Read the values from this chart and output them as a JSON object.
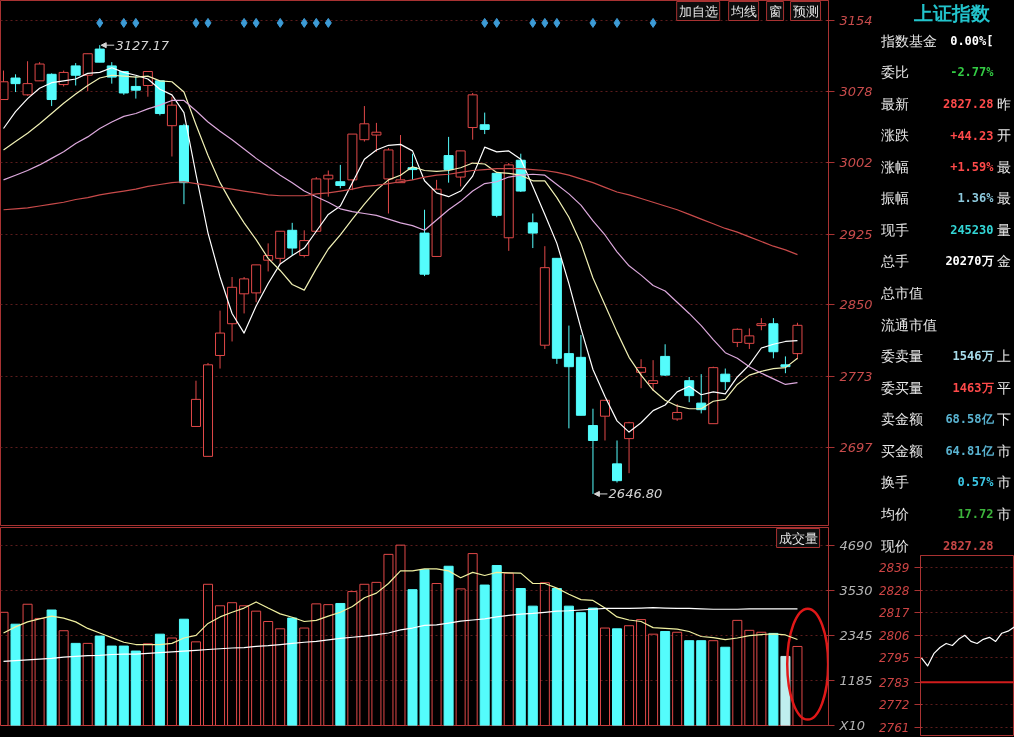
{
  "chart_data": [
    {
      "type": "candlestick",
      "categories": [
        null,
        null,
        null,
        null,
        null,
        null,
        null,
        null,
        null,
        null,
        null,
        null,
        null,
        null,
        null,
        null,
        null,
        null,
        null,
        null,
        null,
        null,
        null,
        null,
        null,
        null,
        null,
        null,
        null,
        null,
        null,
        null,
        null,
        null,
        null,
        null,
        null,
        null,
        null,
        null,
        null,
        null,
        null,
        null,
        null,
        null,
        null,
        null,
        null,
        null,
        null,
        null,
        null,
        null,
        null,
        null,
        null,
        null,
        null,
        null,
        null,
        null,
        null,
        null,
        null,
        null,
        null
      ],
      "ohlc": [
        [
          3069,
          3100,
          3069,
          3088
        ],
        [
          3092,
          3096,
          3077,
          3086
        ],
        [
          3074,
          3110,
          3073,
          3086
        ],
        [
          3089,
          3109,
          3089,
          3107
        ],
        [
          3096,
          3097,
          3062,
          3069
        ],
        [
          3085,
          3100,
          3083,
          3098
        ],
        [
          3105,
          3108,
          3084,
          3095
        ],
        [
          3095,
          3118,
          3078,
          3118
        ],
        [
          3123,
          3127.17,
          3109,
          3109
        ],
        [
          3105,
          3109,
          3086,
          3093
        ],
        [
          3099,
          3099,
          3074,
          3076
        ],
        [
          3083,
          3094,
          3070,
          3079
        ],
        [
          3084,
          3099,
          3072,
          3099
        ],
        [
          3089,
          3089,
          3052,
          3054
        ],
        [
          3041,
          3072,
          3008,
          3063
        ],
        [
          3041,
          3043,
          2957,
          2980
        ],
        [
          2719,
          2768,
          2719,
          2748
        ],
        [
          2687,
          2787,
          2687,
          2785
        ],
        [
          2795,
          2843,
          2781,
          2819
        ],
        [
          2829,
          2879,
          2810,
          2868
        ],
        [
          2861,
          2879,
          2840,
          2877
        ],
        [
          2862,
          2892,
          2852,
          2892
        ],
        [
          2897,
          2915,
          2885,
          2902
        ],
        [
          2899,
          2928,
          2893,
          2928
        ],
        [
          2929,
          2937,
          2902,
          2910
        ],
        [
          2902,
          2929,
          2900,
          2918
        ],
        [
          2928,
          2986,
          2928,
          2984
        ],
        [
          2984,
          2993,
          2965,
          2988
        ],
        [
          2981,
          2999,
          2974,
          2977
        ],
        [
          2983,
          3032,
          2972,
          3032
        ],
        [
          3026,
          3062,
          3024,
          3043
        ],
        [
          3031,
          3044,
          3013,
          3034
        ],
        [
          2984,
          3017,
          2947,
          3015
        ],
        [
          2980,
          3031,
          2980,
          2983
        ],
        [
          2996,
          3011,
          2983,
          2994
        ],
        [
          2926,
          2951,
          2880,
          2882
        ],
        [
          2901,
          2983,
          2901,
          2973
        ],
        [
          3009,
          3029,
          2980,
          2994
        ],
        [
          2986,
          3014,
          2976,
          3014
        ],
        [
          3039,
          3076,
          3026,
          3074
        ],
        [
          3042,
          3055,
          3032,
          3037
        ],
        [
          2990,
          2990,
          2943,
          2945
        ],
        [
          2921,
          3001,
          2907,
          2999
        ],
        [
          3004,
          3011,
          2970,
          2971
        ],
        [
          2937,
          2947,
          2910,
          2926
        ],
        [
          2806,
          2912,
          2802,
          2889
        ],
        [
          2899,
          2899,
          2786,
          2792
        ],
        [
          2797,
          2827,
          2717,
          2783
        ],
        [
          2793,
          2817,
          2731,
          2731
        ],
        [
          2720,
          2738,
          2646.8,
          2704
        ],
        [
          2730,
          2747,
          2704,
          2747
        ],
        [
          2679,
          2704,
          2659,
          2661
        ],
        [
          2706,
          2724,
          2669,
          2723
        ],
        [
          2777,
          2791,
          2760,
          2782
        ],
        [
          2765,
          2790,
          2757,
          2768
        ],
        [
          2794,
          2807,
          2773,
          2774
        ],
        [
          2727,
          2743,
          2725,
          2734
        ],
        [
          2768,
          2772,
          2745,
          2752
        ],
        [
          2744,
          2775,
          2733,
          2737
        ],
        [
          2722,
          2783,
          2722,
          2782
        ],
        [
          2775,
          2781,
          2758,
          2767
        ],
        [
          2809,
          2824,
          2804,
          2823
        ],
        [
          2808,
          2824,
          2802,
          2816
        ],
        [
          2827,
          2835,
          2822,
          2829
        ],
        [
          2829,
          2835,
          2792,
          2799
        ],
        [
          2785,
          2794,
          2776,
          2783.05
        ],
        [
          2797,
          2830,
          2791,
          2827.28
        ]
      ],
      "colors": [
        "#e04848",
        "#54fcfc",
        "#e04848",
        "#e04848",
        "#54fcfc",
        "#e04848",
        "#54fcfc",
        "#e04848",
        "#54fcfc",
        "#54fcfc",
        "#54fcfc",
        "#54fcfc",
        "#e04848",
        "#54fcfc",
        "#e04848",
        "#54fcfc",
        "#e04848",
        "#e04848",
        "#e04848",
        "#e04848",
        "#e04848",
        "#e04848",
        "#e04848",
        "#e04848",
        "#54fcfc",
        "#e04848",
        "#e04848",
        "#e04848",
        "#54fcfc",
        "#e04848",
        "#e04848",
        "#e04848",
        "#e04848",
        "#e04848",
        "#54fcfc",
        "#54fcfc",
        "#e04848",
        "#54fcfc",
        "#e04848",
        "#e04848",
        "#54fcfc",
        "#54fcfc",
        "#e04848",
        "#54fcfc",
        "#54fcfc",
        "#e04848",
        "#54fcfc",
        "#54fcfc",
        "#54fcfc",
        "#54fcfc",
        "#e04848",
        "#54fcfc",
        "#e04848",
        "#e04848",
        "#e04848",
        "#54fcfc",
        "#e04848",
        "#54fcfc",
        "#54fcfc",
        "#e04848",
        "#54fcfc",
        "#e04848",
        "#e04848",
        "#e04848",
        "#54fcfc",
        "#54fcfc",
        "#e04848"
      ],
      "series": [
        {
          "type": "line",
          "color": "#ffffff",
          "values": [
            3038,
            3056,
            3070,
            3081,
            3087,
            3089,
            3091,
            3097,
            3098,
            3103,
            3098,
            3095,
            3091,
            3080,
            3074,
            3055,
            2989,
            2926,
            2879,
            2840,
            2819,
            2848,
            2872,
            2893,
            2902,
            2910,
            2928,
            2946,
            2955,
            2980,
            3005,
            3015,
            3020,
            3021,
            3014,
            2982,
            2969,
            2965,
            2971,
            2987,
            3018,
            3013,
            3014,
            3005,
            2976,
            2946,
            2915,
            2872,
            2824,
            2780,
            2751,
            2725,
            2713,
            2723,
            2736,
            2742,
            2756,
            2762,
            2753,
            2756,
            2754,
            2772,
            2785,
            2803,
            2807,
            2810,
            2811
          ]
        },
        {
          "type": "line",
          "color": "#f0f0b4",
          "values": [
            3015,
            3024,
            3033,
            3043,
            3054,
            3065,
            3075,
            3084,
            3092,
            3095,
            3094,
            3093,
            3094,
            3089,
            3088,
            3077,
            3042,
            3009,
            2980,
            2957,
            2937,
            2919,
            2899,
            2886,
            2871,
            2865,
            2888,
            2909,
            2924,
            2941,
            2957,
            2972,
            2983,
            2988,
            2997,
            2993,
            2992,
            2993,
            2996,
            3001,
            3000,
            2991,
            2990,
            2988,
            2982,
            2982,
            2964,
            2943,
            2915,
            2878,
            2849,
            2820,
            2793,
            2774,
            2758,
            2747,
            2741,
            2738,
            2738,
            2746,
            2748,
            2764,
            2774,
            2778,
            2781,
            2782,
            2792
          ]
        },
        {
          "type": "line",
          "color": "#dca8dc",
          "values": [
            2983,
            2988,
            2993,
            2999,
            3006,
            3013,
            3022,
            3029,
            3038,
            3045,
            3051,
            3054,
            3059,
            3063,
            3068,
            3068,
            3057,
            3045,
            3035,
            3026,
            3016,
            3006,
            2997,
            2988,
            2980,
            2971,
            2965,
            2959,
            2952,
            2949,
            2947,
            2945,
            2941,
            2937,
            2934,
            2929,
            2940,
            2951,
            2960,
            2971,
            2979,
            2981,
            2986,
            2988,
            2989,
            2988,
            2978,
            2968,
            2956,
            2939,
            2924,
            2906,
            2891,
            2881,
            2870,
            2864,
            2852,
            2840,
            2827,
            2812,
            2798,
            2792,
            2783,
            2776,
            2770,
            2764,
            2766
          ]
        },
        {
          "type": "line",
          "color": "#c84a4a",
          "values": [
            2951,
            2952,
            2953,
            2955,
            2957,
            2959,
            2962,
            2964,
            2967,
            2969,
            2971,
            2973,
            2976,
            2978,
            2980,
            2981,
            2979,
            2977,
            2975,
            2973,
            2971,
            2969,
            2967,
            2966,
            2966,
            2966,
            2968,
            2969,
            2971,
            2973,
            2976,
            2977,
            2979,
            2981,
            2983,
            2986,
            2988,
            2989,
            2991,
            2993,
            2994,
            2995,
            2995,
            2995,
            2994,
            2993,
            2991,
            2988,
            2984,
            2980,
            2975,
            2970,
            2967,
            2963,
            2959,
            2955,
            2951,
            2946,
            2941,
            2936,
            2931,
            2927,
            2922,
            2917,
            2912,
            2908,
            2903
          ]
        },
        {
          "type": "scatter",
          "marker": "diamond",
          "color": "#3d9bd6",
          "values": [
            null,
            null,
            null,
            null,
            null,
            null,
            null,
            null,
            3151,
            null,
            3151,
            3151,
            null,
            null,
            null,
            null,
            3151,
            3151,
            null,
            null,
            3151,
            3151,
            null,
            3151,
            null,
            3151,
            3151,
            3151,
            null,
            null,
            null,
            null,
            null,
            null,
            null,
            null,
            null,
            null,
            null,
            null,
            3151,
            3151,
            null,
            null,
            3151,
            3151,
            3151,
            null,
            null,
            3151,
            null,
            3151,
            null,
            null,
            3151,
            null,
            null,
            null,
            null,
            null,
            null,
            null,
            null,
            null,
            null,
            null,
            null
          ]
        }
      ],
      "ylim": [
        2613,
        3175
      ],
      "yticks": [
        3154,
        3078,
        3002,
        2925,
        2850,
        2773,
        2697
      ],
      "grid": "y",
      "tick_labels": "y",
      "annotations": [
        "3127.17",
        "2646.80",
        "加自选",
        "均线",
        "窗",
        "预测"
      ]
    },
    {
      "type": "other",
      "title": "上证指数",
      "y_categories": [
        "指数基金",
        "委比",
        "最新",
        "涨跌",
        "涨幅",
        "振幅",
        "现手",
        "总手",
        "总市值",
        "流通市值",
        "委卖量",
        "委买量",
        "卖金额",
        "买金额",
        "换手",
        "均价",
        "现价"
      ],
      "value_labels": [
        "0.00%[",
        "-2.77%",
        "2827.28",
        "+44.23",
        "+1.59%",
        "1.36%",
        "245230",
        "20270万",
        null,
        null,
        "1546万",
        "1463万",
        "68.58亿",
        "64.81亿",
        "0.57%",
        "17.72",
        "2827.28"
      ],
      "colors": [
        "#ffffff",
        "#33cc44",
        "#ff4a4a",
        "#ff4a4a",
        "#ff4a4a",
        "#8cc8dc",
        "#33d6d6",
        "#ffffff",
        null,
        null,
        "#a8dcea",
        "#ff4a4a",
        "#5ab4d2",
        "#5ab4d2",
        "#3cc8e6",
        "#3cb43c",
        "#c84646"
      ],
      "y2_categories": [
        null,
        null,
        "昨",
        "开",
        "最",
        "最",
        "量",
        "金",
        null,
        null,
        "上",
        "平",
        "下",
        "市",
        "市",
        "市",
        null
      ]
    },
    {
      "type": "bar",
      "categories": [
        null,
        null,
        null,
        null,
        null,
        null,
        null,
        null,
        null,
        null,
        null,
        null,
        null,
        null,
        null,
        null,
        null,
        null,
        null,
        null,
        null,
        null,
        null,
        null,
        null,
        null,
        null,
        null,
        null,
        null,
        null,
        null,
        null,
        null,
        null,
        null,
        null,
        null,
        null,
        null,
        null,
        null,
        null,
        null,
        null,
        null,
        null,
        null,
        null,
        null,
        null,
        null,
        null,
        null,
        null,
        null,
        null,
        null,
        null,
        null,
        null,
        null,
        null,
        null,
        null,
        null,
        null
      ],
      "series": [
        {
          "type": "bar",
          "colors": [
            "#e04848",
            "#54fcfc",
            "#e04848",
            "#e04848",
            "#54fcfc",
            "#e04848",
            "#54fcfc",
            "#e04848",
            "#54fcfc",
            "#54fcfc",
            "#54fcfc",
            "#54fcfc",
            "#e04848",
            "#54fcfc",
            "#e04848",
            "#54fcfc",
            "#e04848",
            "#e04848",
            "#e04848",
            "#e04848",
            "#e04848",
            "#e04848",
            "#e04848",
            "#e04848",
            "#54fcfc",
            "#e04848",
            "#e04848",
            "#e04848",
            "#54fcfc",
            "#e04848",
            "#e04848",
            "#e04848",
            "#e04848",
            "#e04848",
            "#54fcfc",
            "#54fcfc",
            "#e04848",
            "#54fcfc",
            "#e04848",
            "#e04848",
            "#54fcfc",
            "#54fcfc",
            "#e04848",
            "#54fcfc",
            "#54fcfc",
            "#e04848",
            "#54fcfc",
            "#54fcfc",
            "#54fcfc",
            "#54fcfc",
            "#e04848",
            "#54fcfc",
            "#e04848",
            "#e04848",
            "#e04848",
            "#54fcfc",
            "#e04848",
            "#54fcfc",
            "#54fcfc",
            "#e04848",
            "#54fcfc",
            "#e04848",
            "#e04848",
            "#e04848",
            "#54fcfc",
            "#bfeeee",
            "#e04848"
          ],
          "values": [
            2950,
            2640,
            3160,
            2790,
            3010,
            2470,
            2140,
            2140,
            2330,
            2070,
            2070,
            1940,
            2130,
            2380,
            2280,
            2770,
            2180,
            3680,
            3120,
            3200,
            3120,
            2980,
            2710,
            2520,
            2800,
            2540,
            3170,
            3150,
            3180,
            3490,
            3680,
            3730,
            4460,
            4700,
            3540,
            4060,
            3700,
            4150,
            3560,
            4480,
            3660,
            4170,
            3970,
            3570,
            3110,
            3720,
            3570,
            3110,
            2940,
            3060,
            2540,
            2520,
            2600,
            2760,
            2380,
            2450,
            2430,
            2210,
            2210,
            2210,
            2040,
            2740,
            2480,
            2430,
            2400,
            1800,
            2060
          ]
        },
        {
          "type": "line",
          "color": "#f0f0a0",
          "values": [
            2410,
            2570,
            2700,
            2780,
            2850,
            2800,
            2700,
            2530,
            2410,
            2290,
            2170,
            2110,
            2110,
            2110,
            2140,
            2280,
            2350,
            2660,
            2830,
            2950,
            3060,
            3220,
            3060,
            2910,
            2820,
            2710,
            2740,
            2850,
            2950,
            3100,
            3330,
            3450,
            3700,
            4030,
            4030,
            4080,
            4080,
            4030,
            3850,
            3990,
            3910,
            3990,
            3980,
            3970,
            3700,
            3700,
            3580,
            3420,
            3280,
            3260,
            3060,
            2830,
            2750,
            2710,
            2550,
            2530,
            2510,
            2450,
            2320,
            2290,
            2240,
            2280,
            2340,
            2370,
            2390,
            2360,
            2240
          ]
        },
        {
          "type": "line",
          "color": "#ffffff",
          "values": [
            1670,
            1690,
            1710,
            1730,
            1750,
            1780,
            1800,
            1820,
            1830,
            1850,
            1860,
            1860,
            1880,
            1900,
            1920,
            1940,
            1960,
            1980,
            2000,
            2020,
            2030,
            2060,
            2080,
            2110,
            2140,
            2170,
            2190,
            2230,
            2270,
            2300,
            2330,
            2370,
            2410,
            2490,
            2540,
            2610,
            2620,
            2670,
            2720,
            2750,
            2780,
            2830,
            2870,
            2900,
            2920,
            2950,
            2980,
            2990,
            3010,
            3030,
            3050,
            3050,
            3050,
            3060,
            3070,
            3060,
            3050,
            3050,
            3040,
            3030,
            3030,
            3030,
            3040,
            3040,
            3040,
            3040,
            3040
          ]
        }
      ],
      "ylim": [
        0,
        5160
      ],
      "yticks": [
        {
          "value": 0,
          "label": "X10"
        },
        1185,
        2345,
        3530,
        4690
      ],
      "grid": "y",
      "tick_labels": "y",
      "annotations": [
        "成交量"
      ]
    },
    {
      "type": "line",
      "categories": [
        null,
        null,
        null,
        null,
        null,
        null,
        null,
        null,
        null,
        null,
        null,
        null,
        null,
        null,
        null,
        null
      ],
      "values": [
        2795,
        2791,
        2797,
        2800,
        2802,
        2801,
        2804,
        2806,
        2803,
        2802,
        2804,
        2805,
        2803,
        2807,
        2808,
        2810
      ],
      "color": "#ffffff",
      "ylim": [
        2757,
        2845
      ],
      "yticks": [
        2839,
        2828,
        2817,
        2806,
        2795,
        2783,
        2772,
        2761
      ],
      "grid": "y",
      "tick_labels": "y",
      "ref_lines": [
        {
          "axis": "y",
          "value": 2783,
          "color": "#d01c1c"
        }
      ]
    }
  ]
}
